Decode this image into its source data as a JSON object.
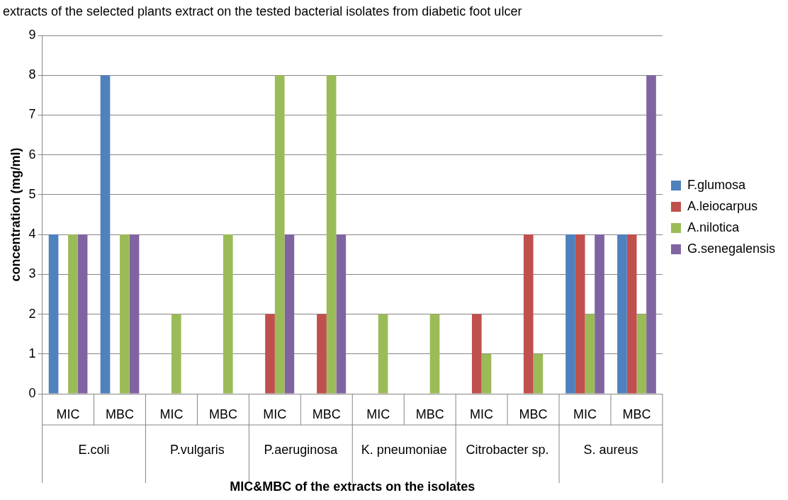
{
  "chart_data": {
    "type": "bar",
    "title": "extracts of the selected plants extract on the tested bacterial isolates from diabetic foot ulcer",
    "categories": [
      "MIC",
      "MBC",
      "MIC",
      "MBC",
      "MIC",
      "MBC",
      "MIC",
      "MBC",
      "MIC",
      "MBC",
      "MIC",
      "MBC"
    ],
    "annotations": [
      "E.coli",
      "P.vulgaris",
      "P.aeruginosa",
      "K. pneumoniae",
      "Citrobacter sp.",
      "S. aureus"
    ],
    "xlabel": "MIC&MBC of the extracts on the isolates",
    "ylabel": "concentration (mg/ml)",
    "series": [
      {
        "name": "F.glumosa",
        "color": "#4f81bd",
        "values": [
          4,
          8,
          0,
          0,
          0,
          0,
          0,
          0,
          0,
          0,
          4,
          4
        ]
      },
      {
        "name": "A.leiocarpus",
        "color": "#c0504d",
        "values": [
          0,
          0,
          0,
          0,
          2,
          2,
          0,
          0,
          2,
          4,
          4,
          4
        ]
      },
      {
        "name": "A.nilotica",
        "color": "#9bbb59",
        "values": [
          4,
          4,
          2,
          4,
          8,
          8,
          2,
          2,
          1,
          1,
          2,
          2
        ]
      },
      {
        "name": "G.senegalensis",
        "color": "#8064a2",
        "values": [
          4,
          4,
          0,
          0,
          4,
          4,
          0,
          0,
          0,
          0,
          4,
          8
        ]
      }
    ],
    "ylim": [
      0,
      9
    ],
    "yticks": [
      0,
      1,
      2,
      3,
      4,
      5,
      6,
      7,
      8,
      9
    ],
    "grid": "y",
    "legend": "right"
  }
}
